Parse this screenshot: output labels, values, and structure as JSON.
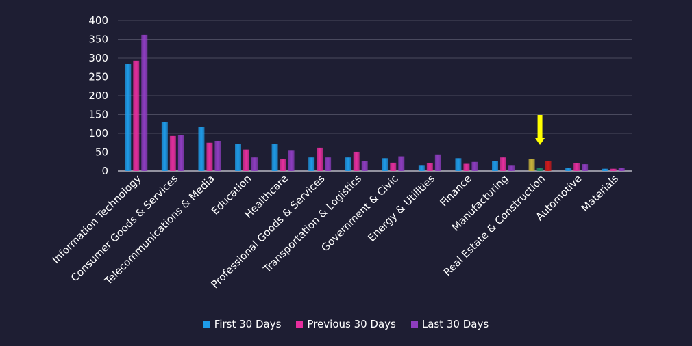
{
  "chart_data": {
    "type": "bar",
    "categories": [
      "Information Technology",
      "Consumer Goods & Services",
      "Telecommunications & Media",
      "Education",
      "Healthcare",
      "Professional Goods & Services",
      "Transportation & Logistics",
      "Government & Civic",
      "Energy & Utilities",
      "Finance",
      "Manufacturing",
      "Real Estate & Construction",
      "Automotive",
      "Materials"
    ],
    "series": [
      {
        "name": "First 30 Days",
        "color": "#1e9be8",
        "values": [
          285,
          130,
          118,
          72,
          72,
          36,
          36,
          34,
          14,
          34,
          27,
          31,
          8,
          6
        ]
      },
      {
        "name": "Previous 30 Days",
        "color": "#e62e9e",
        "values": [
          293,
          93,
          75,
          57,
          32,
          62,
          51,
          22,
          21,
          19,
          36,
          8,
          21,
          6
        ]
      },
      {
        "name": "Last 30 Days",
        "color": "#8e3dc0",
        "values": [
          362,
          95,
          80,
          36,
          54,
          36,
          27,
          39,
          44,
          24,
          14,
          27,
          18,
          8
        ]
      }
    ],
    "yticks": [
      "0",
      "50",
      "100",
      "150",
      "200",
      "250",
      "300",
      "350",
      "400"
    ],
    "ylim": [
      0,
      400
    ],
    "grid": true,
    "legend_position": "bottom",
    "annotation": {
      "category": "Real Estate & Construction",
      "icon": "arrow-down-icon",
      "color": "#ffff00"
    },
    "highlight_colors": {
      "Real Estate & Construction": [
        "#c9b53a",
        "#1e8f6b",
        "#d01a1a"
      ]
    }
  }
}
